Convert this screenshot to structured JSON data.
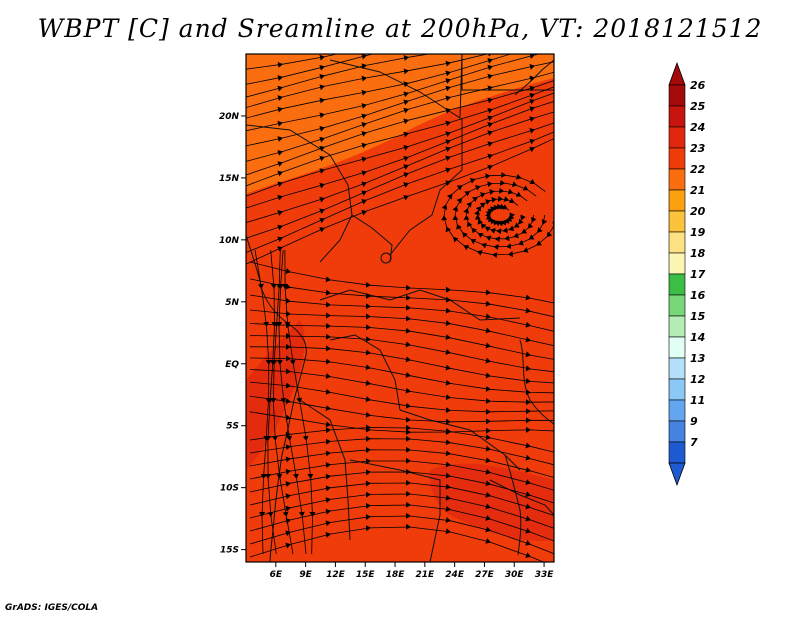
{
  "title": "WBPT [C] and Sreamline at 200hPa, VT: 2018121512",
  "footer": "GrADS: IGES/COLA",
  "map": {
    "lon_range": [
      3,
      34
    ],
    "lat_range": [
      -16,
      25
    ],
    "lat_ticks": [
      {
        "value": 20,
        "label": "20N"
      },
      {
        "value": 15,
        "label": "15N"
      },
      {
        "value": 10,
        "label": "10N"
      },
      {
        "value": 5,
        "label": "5N"
      },
      {
        "value": 0,
        "label": "EQ"
      },
      {
        "value": -5,
        "label": "5S"
      },
      {
        "value": -10,
        "label": "10S"
      },
      {
        "value": -15,
        "label": "15S"
      }
    ],
    "lon_ticks": [
      {
        "value": 6,
        "label": "6E"
      },
      {
        "value": 9,
        "label": "9E"
      },
      {
        "value": 12,
        "label": "12E"
      },
      {
        "value": 15,
        "label": "15E"
      },
      {
        "value": 18,
        "label": "18E"
      },
      {
        "value": 21,
        "label": "21E"
      },
      {
        "value": 24,
        "label": "24E"
      },
      {
        "value": 27,
        "label": "27E"
      },
      {
        "value": 30,
        "label": "30E"
      },
      {
        "value": 33,
        "label": "33E"
      }
    ]
  },
  "colorbar": {
    "levels": [
      {
        "label": "26",
        "color": "#a50a0a"
      },
      {
        "label": "25",
        "color": "#c8140f"
      },
      {
        "label": "24",
        "color": "#e1280f"
      },
      {
        "label": "23",
        "color": "#f03c0a"
      },
      {
        "label": "22",
        "color": "#fa6e0f"
      },
      {
        "label": "21",
        "color": "#fca010"
      },
      {
        "label": "20",
        "color": "#fbc23c"
      },
      {
        "label": "19",
        "color": "#fde284"
      },
      {
        "label": "18",
        "color": "#fbf6b4"
      },
      {
        "label": "17",
        "color": "#3cbe46"
      },
      {
        "label": "16",
        "color": "#78d778"
      },
      {
        "label": "15",
        "color": "#b4eeb4"
      },
      {
        "label": "14",
        "color": "#e1fff5"
      },
      {
        "label": "13",
        "color": "#b4e1fa"
      },
      {
        "label": "12",
        "color": "#8cc8f5"
      },
      {
        "label": "11",
        "color": "#64a5f0"
      },
      {
        "label": "9",
        "color": "#4682e1"
      },
      {
        "label": "7",
        "color": "#1e5ad2"
      }
    ]
  },
  "colors": {
    "field_base": "#f03c0a",
    "field_north": "#fa6e0f",
    "field_dark": "#e1280f"
  }
}
